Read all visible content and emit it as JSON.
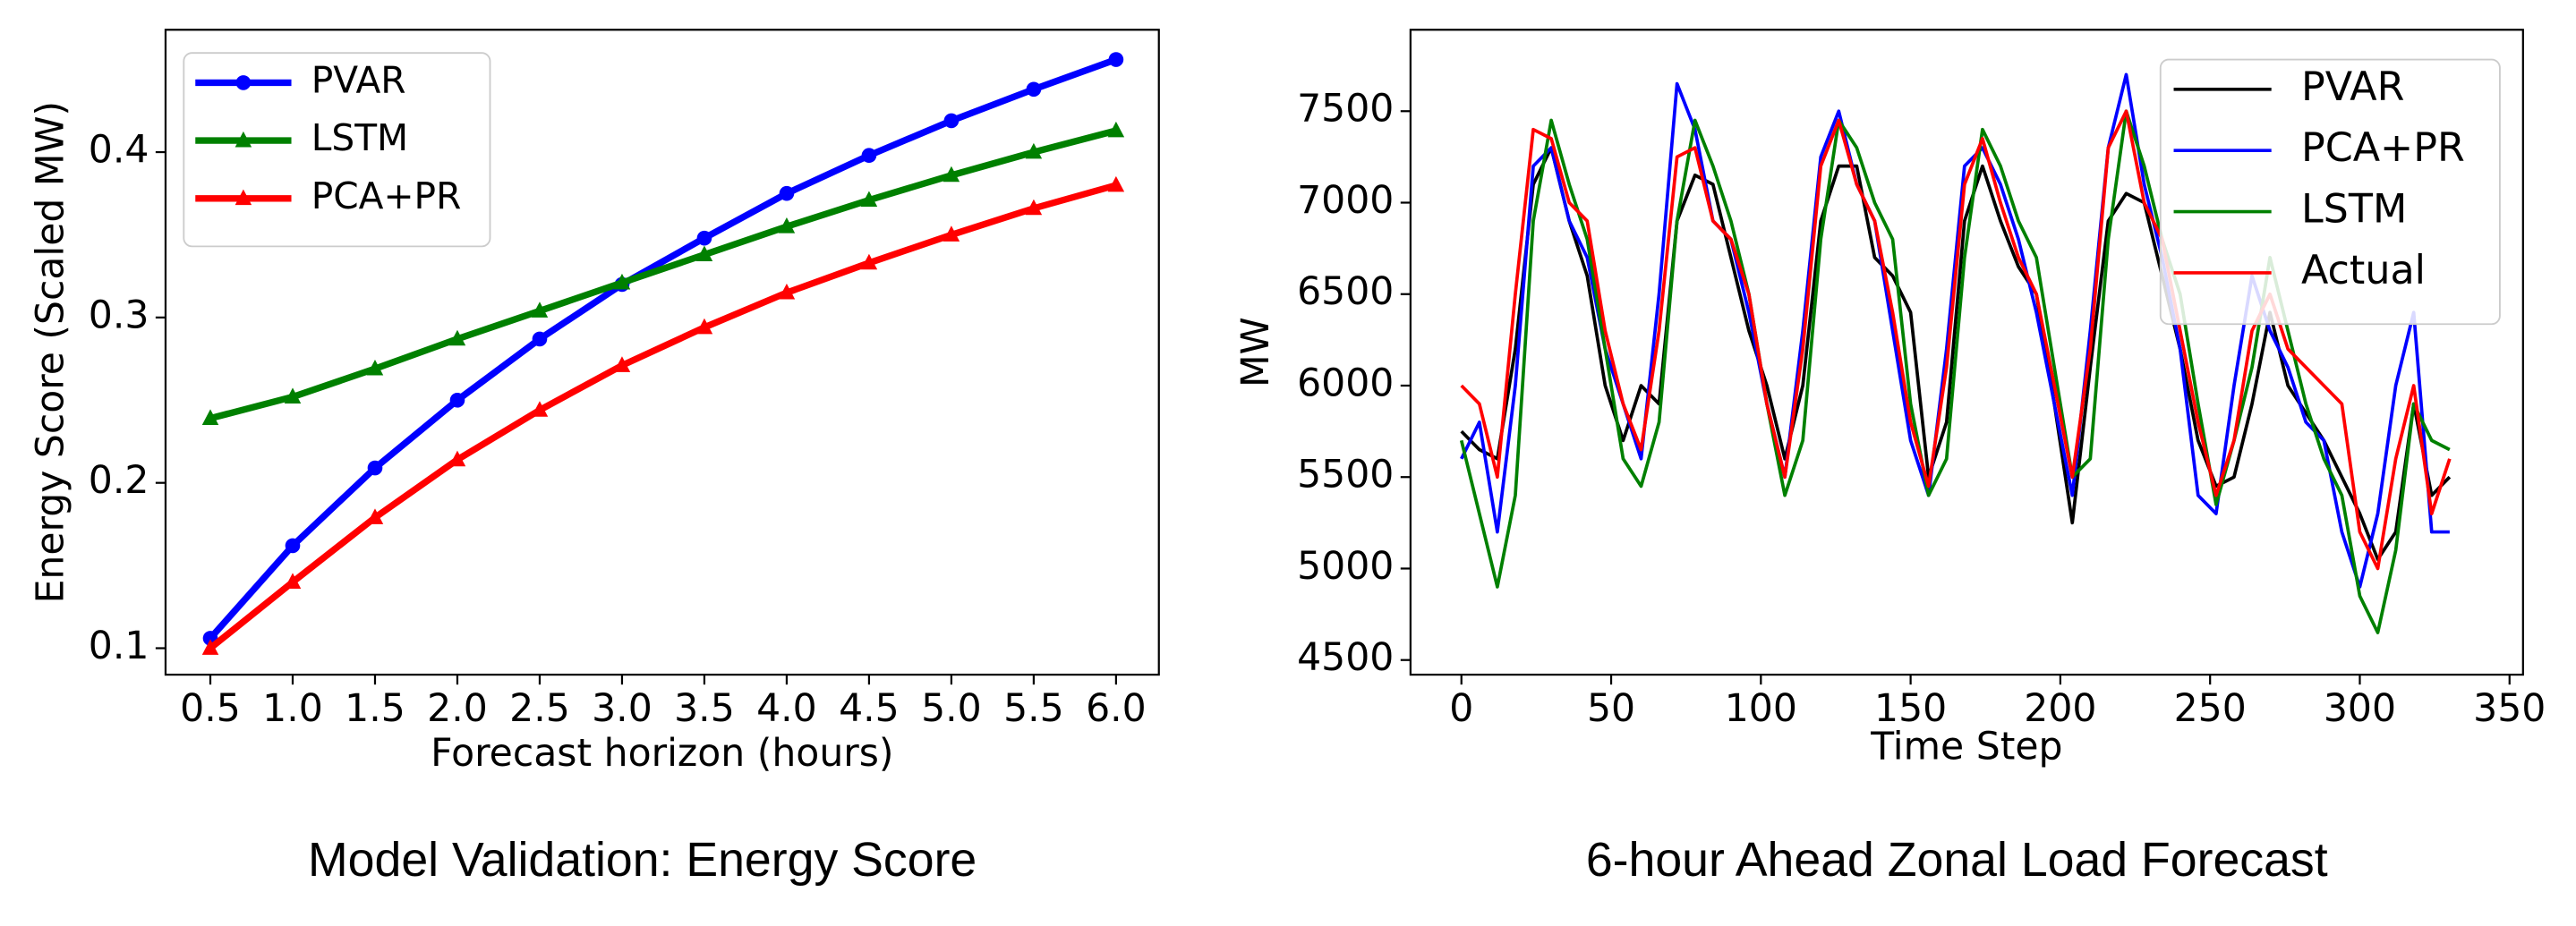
{
  "chart_data": [
    {
      "type": "line",
      "caption": "Model Validation: Energy Score",
      "x_label": "Forecast horizon (hours)",
      "y_label": "Energy Score (Scaled MW)",
      "x": [
        0.5,
        1,
        1.5,
        2,
        2.5,
        3,
        3.5,
        4,
        4.5,
        5,
        5.5,
        6
      ],
      "series": [
        {
          "name": "PVAR",
          "color": "#0000ff",
          "marker": "circle",
          "values": [
            0.106,
            0.162,
            0.209,
            0.25,
            0.287,
            0.32,
            0.348,
            0.375,
            0.398,
            0.419,
            0.438,
            0.456
          ]
        },
        {
          "name": "LSTM",
          "color": "#008000",
          "marker": "triangle",
          "values": [
            0.239,
            0.252,
            0.269,
            0.287,
            0.304,
            0.321,
            0.338,
            0.355,
            0.371,
            0.386,
            0.4,
            0.413
          ]
        },
        {
          "name": "PCA+PR",
          "color": "#ff0000",
          "marker": "triangle",
          "values": [
            0.1,
            0.14,
            0.179,
            0.214,
            0.244,
            0.271,
            0.294,
            0.315,
            0.333,
            0.35,
            0.366,
            0.38
          ]
        }
      ],
      "xlim": [
        0.228,
        6.26
      ],
      "ylim": [
        0.084,
        0.474
      ],
      "xticks": [
        0.5,
        {
          "value": 1,
          "label": "1.0"
        },
        1.5,
        {
          "value": 2,
          "label": "2.0"
        },
        2.5,
        {
          "value": 3,
          "label": "3.0"
        },
        3.5,
        {
          "value": 4,
          "label": "4.0"
        },
        4.5,
        {
          "value": 5,
          "label": "5.0"
        },
        5.5,
        {
          "value": 6,
          "label": "6.0"
        }
      ],
      "yticks": [
        0.1,
        0.2,
        0.3,
        0.4
      ],
      "legend": "upper-left"
    },
    {
      "type": "line",
      "caption": "6-hour Ahead Zonal Load Forecast",
      "x_label": "Time Step",
      "y_label": "MW",
      "x": [
        0,
        6,
        12,
        18,
        24,
        30,
        36,
        42,
        48,
        54,
        60,
        66,
        72,
        78,
        84,
        90,
        96,
        102,
        108,
        114,
        120,
        126,
        132,
        138,
        144,
        150,
        156,
        162,
        168,
        174,
        180,
        186,
        192,
        198,
        204,
        210,
        216,
        222,
        228,
        234,
        240,
        246,
        252,
        258,
        264,
        270,
        276,
        282,
        288,
        294,
        300,
        306,
        312,
        318,
        324,
        330
      ],
      "series": [
        {
          "name": "PVAR",
          "color": "#000000",
          "values": [
            5750,
            5650,
            5600,
            6200,
            7100,
            7300,
            6900,
            6600,
            6000,
            5700,
            6000,
            5900,
            6900,
            7150,
            7100,
            6700,
            6300,
            6000,
            5600,
            6000,
            6900,
            7200,
            7200,
            6700,
            6600,
            6400,
            5500,
            5800,
            6900,
            7200,
            6900,
            6650,
            6500,
            5900,
            5250,
            6100,
            6900,
            7050,
            7000,
            6600,
            6200,
            5700,
            5450,
            5500,
            5900,
            6400,
            6000,
            5850,
            5700,
            5500,
            5300,
            5050,
            5200,
            5900,
            5400,
            5500
          ]
        },
        {
          "name": "PCA+PR",
          "color": "#0000ff",
          "values": [
            5600,
            5800,
            5200,
            6000,
            7200,
            7300,
            6900,
            6700,
            6200,
            5900,
            5600,
            6500,
            7650,
            7400,
            6900,
            6800,
            6400,
            5900,
            5500,
            6300,
            7250,
            7500,
            7100,
            6900,
            6300,
            5700,
            5400,
            6200,
            7200,
            7300,
            7100,
            6800,
            6400,
            5900,
            5400,
            6300,
            7300,
            7700,
            7100,
            6700,
            6200,
            5400,
            5300,
            6000,
            6600,
            6300,
            6100,
            5800,
            5700,
            5200,
            4900,
            5300,
            6000,
            6400,
            5200,
            5200
          ]
        },
        {
          "name": "LSTM",
          "color": "#008000",
          "values": [
            5700,
            5300,
            4900,
            5400,
            6900,
            7450,
            7100,
            6800,
            6200,
            5600,
            5450,
            5800,
            6900,
            7450,
            7200,
            6900,
            6500,
            5900,
            5400,
            5700,
            6800,
            7450,
            7300,
            7000,
            6800,
            5900,
            5400,
            5600,
            6700,
            7400,
            7200,
            6900,
            6700,
            6100,
            5500,
            5600,
            6800,
            7500,
            7200,
            6800,
            6500,
            5900,
            5350,
            5700,
            6100,
            6700,
            6300,
            5900,
            5600,
            5400,
            4850,
            4650,
            5100,
            5900,
            5700,
            5650
          ]
        },
        {
          "name": "Actual",
          "color": "#ff0000",
          "values": [
            6000,
            5900,
            5500,
            6500,
            7400,
            7350,
            7000,
            6900,
            6300,
            5900,
            5650,
            6300,
            7250,
            7300,
            6900,
            6800,
            6500,
            5900,
            5500,
            6200,
            7200,
            7450,
            7100,
            6900,
            6400,
            5800,
            5450,
            6100,
            7100,
            7350,
            7000,
            6700,
            6500,
            6000,
            5500,
            6200,
            7300,
            7500,
            7000,
            6800,
            6300,
            5800,
            5400,
            5700,
            6300,
            6500,
            6200,
            6100,
            6000,
            5900,
            5200,
            5000,
            5600,
            6000,
            5300,
            5600
          ]
        }
      ],
      "xlim": [
        -17,
        354.5
      ],
      "ylim": [
        4420,
        7945
      ],
      "xticks": [
        0,
        50,
        100,
        150,
        200,
        250,
        300,
        350
      ],
      "yticks": [
        4500,
        5000,
        5500,
        6000,
        6500,
        7000,
        7500
      ],
      "legend": "upper-right"
    }
  ]
}
